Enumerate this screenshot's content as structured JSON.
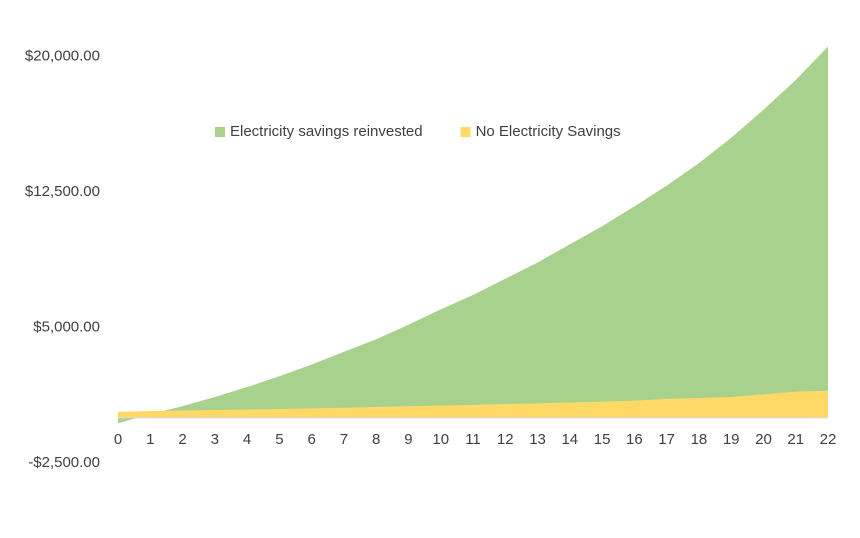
{
  "chart_data": {
    "type": "area",
    "categories": [
      "0",
      "1",
      "2",
      "3",
      "4",
      "5",
      "6",
      "7",
      "8",
      "9",
      "10",
      "11",
      "12",
      "13",
      "14",
      "15",
      "16",
      "17",
      "18",
      "19",
      "20",
      "21",
      "22"
    ],
    "series": [
      {
        "name": "Electricity savings reinvested",
        "color": "#a9d18e",
        "values": [
          -300,
          200,
          650,
          1150,
          1700,
          2300,
          2950,
          3650,
          4350,
          5150,
          6000,
          6800,
          7700,
          8600,
          9600,
          10600,
          11700,
          12850,
          14100,
          15500,
          17050,
          18700,
          20550
        ]
      },
      {
        "name": "No Electricity Savings",
        "color": "#ffd966",
        "values": [
          330,
          380,
          400,
          430,
          460,
          490,
          520,
          560,
          600,
          640,
          680,
          720,
          760,
          800,
          850,
          900,
          950,
          1050,
          1100,
          1150,
          1300,
          1450,
          1500
        ]
      }
    ],
    "ylim": [
      -2500,
      22500
    ],
    "yticks": [
      {
        "value": -2500,
        "label": "-$2,500.00"
      },
      {
        "value": 5000,
        "label": "$5,000.00"
      },
      {
        "value": 12500,
        "label": "$12,500.00"
      },
      {
        "value": 20000,
        "label": "$20,000.00"
      }
    ],
    "grid": false,
    "legend": "top"
  }
}
